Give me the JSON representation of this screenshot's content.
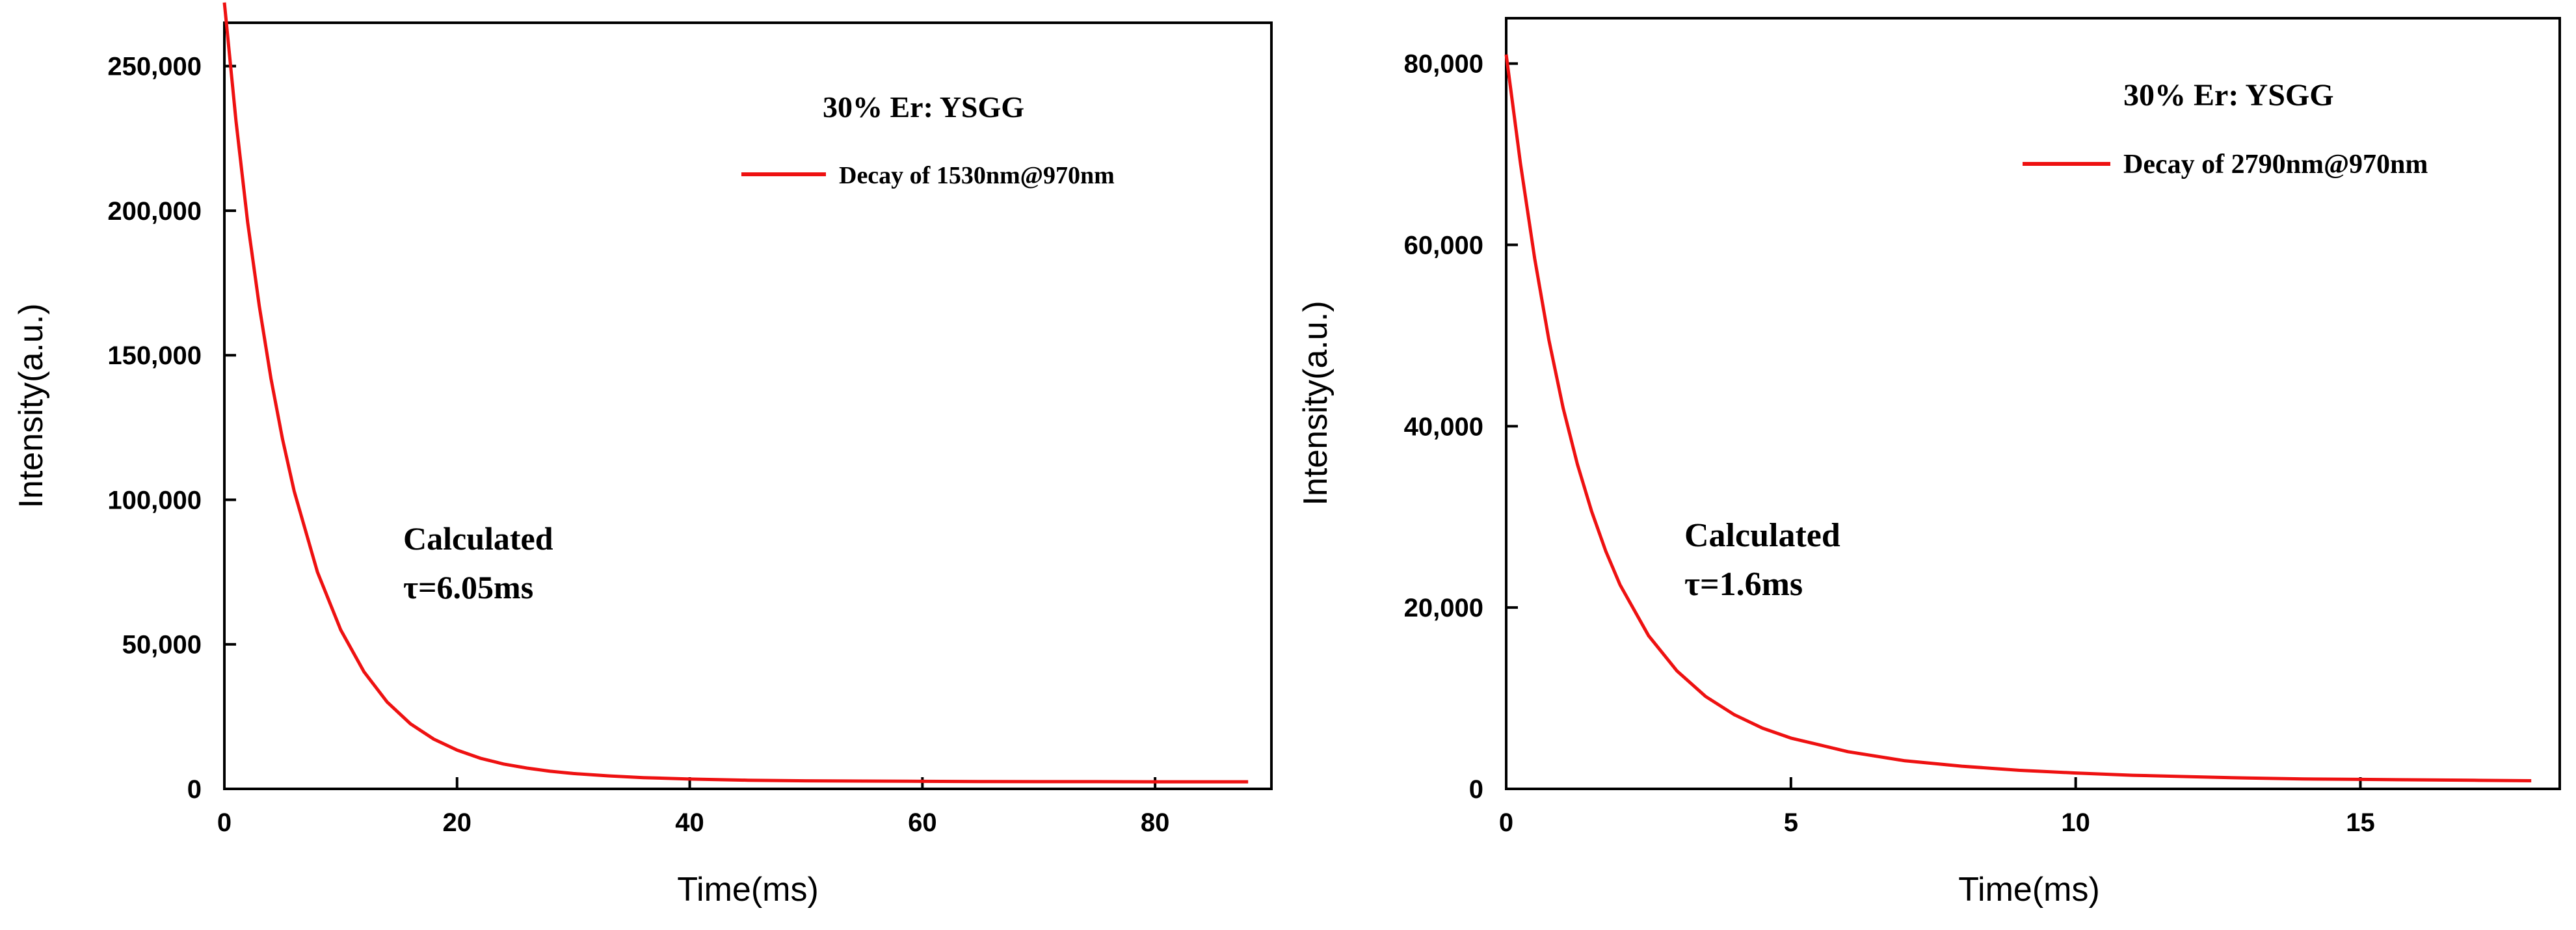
{
  "chart_data": [
    {
      "type": "line",
      "title": "30% Er: YSGG",
      "xlabel": "Time(ms)",
      "ylabel": "Intensity(a.u.)",
      "xlim": [
        0,
        90
      ],
      "ylim": [
        0,
        265000
      ],
      "xticks": [
        0,
        20,
        40,
        60,
        80
      ],
      "xtick_labels": [
        "0",
        "20",
        "40",
        "60",
        "80"
      ],
      "yticks": [
        0,
        50000,
        100000,
        150000,
        200000,
        250000
      ],
      "ytick_labels": [
        "0",
        "50,000",
        "100,000",
        "150,000",
        "200,000",
        "250,000"
      ],
      "legend": "top-right",
      "color": "#ee1111",
      "grid": false,
      "series": [
        {
          "name": "Decay of 1530nm@970nm",
          "x": [
            0,
            1,
            2,
            3,
            4,
            5,
            6,
            8,
            10,
            12,
            14,
            16,
            18,
            20,
            22,
            24,
            26,
            28,
            30,
            33,
            36,
            40,
            45,
            50,
            55,
            60,
            65,
            70,
            75,
            80,
            85,
            88
          ],
          "y": [
            272000,
            231000,
            196000,
            167000,
            142000,
            121000,
            103000,
            75000,
            55000,
            40500,
            30000,
            22500,
            17200,
            13400,
            10600,
            8600,
            7200,
            6100,
            5300,
            4500,
            3900,
            3400,
            3000,
            2800,
            2700,
            2600,
            2550,
            2500,
            2500,
            2450,
            2450,
            2450
          ]
        }
      ],
      "annotations": [
        "Calculated",
        "τ=6.05ms"
      ]
    },
    {
      "type": "line",
      "title": "30% Er: YSGG",
      "xlabel": "Time(ms)",
      "ylabel": "Intensity(a.u.)",
      "xlim": [
        0,
        18.5
      ],
      "ylim": [
        0,
        85000
      ],
      "xticks": [
        0,
        5,
        10,
        15
      ],
      "xtick_labels": [
        "0",
        "5",
        "10",
        "15"
      ],
      "yticks": [
        0,
        20000,
        40000,
        60000,
        80000
      ],
      "ytick_labels": [
        "0",
        "20,000",
        "40,000",
        "60,000",
        "80,000"
      ],
      "legend": "top-right",
      "color": "#ee1111",
      "grid": false,
      "series": [
        {
          "name": "Decay of 2790nm@970nm",
          "x": [
            0,
            0.25,
            0.5,
            0.75,
            1,
            1.25,
            1.5,
            1.75,
            2,
            2.5,
            3,
            3.5,
            4,
            4.5,
            5,
            6,
            7,
            8,
            9,
            10,
            11,
            12,
            13,
            14,
            15,
            16,
            17,
            18
          ],
          "y": [
            81000,
            69000,
            58500,
            49500,
            42000,
            35800,
            30600,
            26200,
            22500,
            16900,
            13000,
            10200,
            8200,
            6700,
            5600,
            4100,
            3100,
            2500,
            2050,
            1750,
            1500,
            1350,
            1200,
            1100,
            1050,
            1000,
            950,
            900
          ]
        }
      ],
      "annotations": [
        "Calculated",
        "τ=1.6ms"
      ]
    }
  ]
}
